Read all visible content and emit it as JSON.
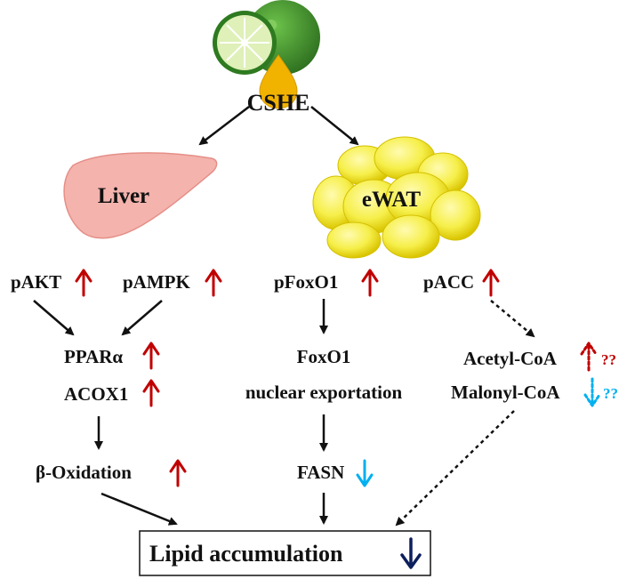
{
  "title": "CSHE",
  "colors": {
    "up": "#c00000",
    "down_light": "#00b0f0",
    "down_dark": "#0d1f5c",
    "liver": "#f4b3ad",
    "fat": "#f6ef4a",
    "citrus": "#3e9a2c",
    "drop": "#f2b200"
  },
  "tissues": {
    "liver": "Liver",
    "fat": "eWAT"
  },
  "liver_path": {
    "pakt": "pAKT",
    "pampk": "pAMPK",
    "ppara": "PPARα",
    "acox1": "ACOX1",
    "beta_oxidation": "β-Oxidation"
  },
  "fat_path": {
    "pfoxo1": "pFoxO1",
    "foxo1": "FoxO1",
    "nuclear_export": "nuclear exportation",
    "fasn": "FASN",
    "pacc": "pACC",
    "acetyl_coa": "Acetyl-CoA",
    "malonyl_coa": "Malonyl-CoA",
    "unknown_up": "??",
    "unknown_down": "??"
  },
  "outcome": {
    "label": "Lipid accumulation"
  },
  "icons": [
    "citrus-icon",
    "oil-drop-icon",
    "liver-icon",
    "adipocyte-cluster-icon",
    "up-arrow-icon",
    "down-arrow-icon"
  ]
}
